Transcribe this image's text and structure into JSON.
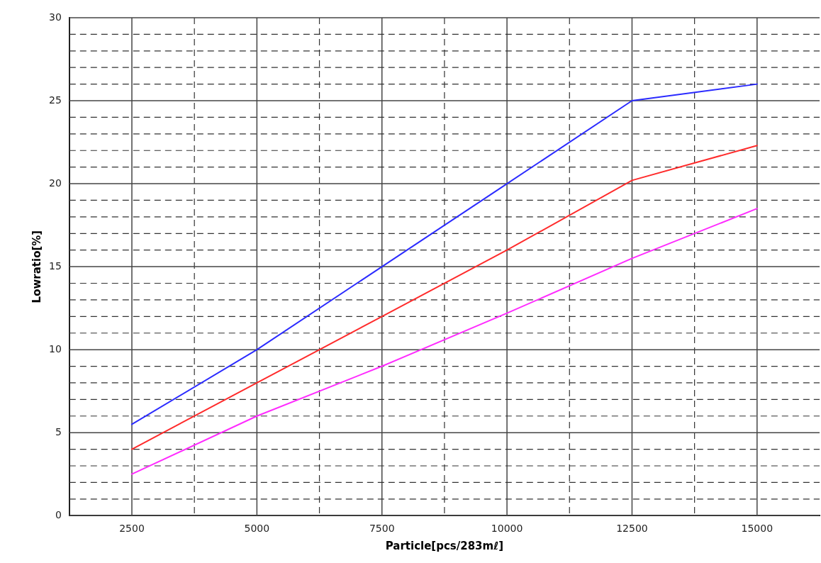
{
  "chart_data": {
    "type": "line",
    "xlabel": "Particle[pcs/283mℓ]",
    "ylabel": "Lowratio[%]",
    "x": [
      2500,
      5000,
      7500,
      10000,
      12500,
      15000
    ],
    "series": [
      {
        "color": "#2b2bff",
        "values": [
          5.5,
          10,
          15,
          20,
          25,
          26
        ]
      },
      {
        "color": "#ff2b2b",
        "values": [
          4,
          8,
          12,
          16,
          20.2,
          22.3
        ]
      },
      {
        "color": "#ff2bff",
        "values": [
          2.5,
          6,
          9,
          12.2,
          15.5,
          18.5
        ]
      }
    ],
    "xlim": [
      1250,
      16250
    ],
    "xticks": [
      2500,
      {
        "value": 3750,
        "label": null
      },
      5000,
      {
        "value": 6250,
        "label": null
      },
      7500,
      {
        "value": 8750,
        "label": null
      },
      10000,
      {
        "value": 11250,
        "label": null
      },
      12500,
      {
        "value": 13750,
        "label": null
      },
      15000
    ],
    "ylim": [
      0,
      30
    ],
    "yticks": [
      0,
      {
        "value": 1,
        "label": null
      },
      {
        "value": 2,
        "label": null
      },
      {
        "value": 3,
        "label": null
      },
      {
        "value": 4,
        "label": null
      },
      5,
      {
        "value": 6,
        "label": null
      },
      {
        "value": 7,
        "label": null
      },
      {
        "value": 8,
        "label": null
      },
      {
        "value": 9,
        "label": null
      },
      10,
      {
        "value": 11,
        "label": null
      },
      {
        "value": 12,
        "label": null
      },
      {
        "value": 13,
        "label": null
      },
      {
        "value": 14,
        "label": null
      },
      15,
      {
        "value": 16,
        "label": null
      },
      {
        "value": 17,
        "label": null
      },
      {
        "value": 18,
        "label": null
      },
      {
        "value": 19,
        "label": null
      },
      20,
      {
        "value": 21,
        "label": null
      },
      {
        "value": 22,
        "label": null
      },
      {
        "value": 23,
        "label": null
      },
      {
        "value": 24,
        "label": null
      },
      25,
      {
        "value": 26,
        "label": null
      },
      {
        "value": 27,
        "label": null
      },
      {
        "value": 28,
        "label": null
      },
      {
        "value": 29,
        "label": null
      },
      30
    ],
    "grid": true,
    "legend": false,
    "marker": "none",
    "line_style": "solid"
  }
}
